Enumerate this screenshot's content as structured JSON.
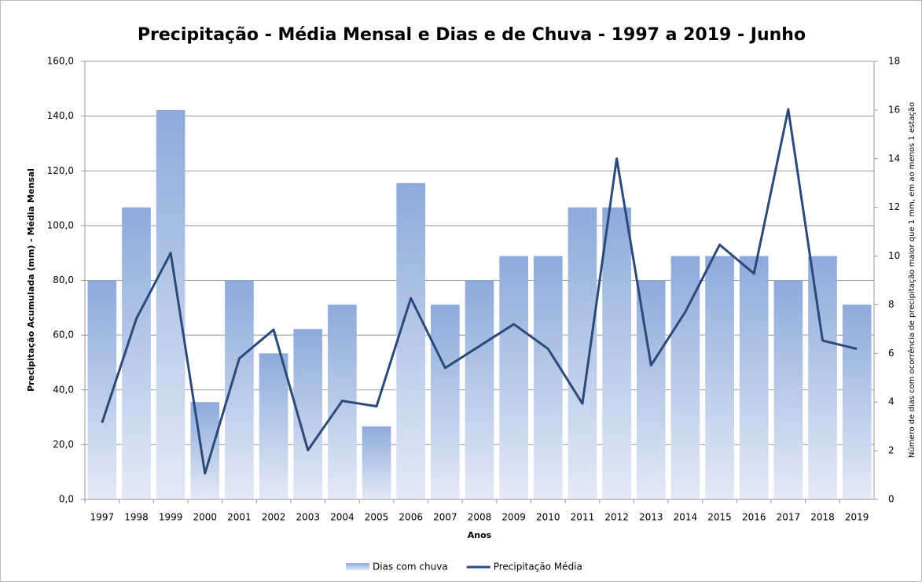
{
  "chart_data": {
    "type": "bar_line",
    "title": "Precipitação - Média Mensal e Dias e de Chuva - 1997 a 2019 - Junho",
    "x_label": "Anos",
    "y_label": "Precipitação Acumulada (mm) - Média Mensal",
    "y2_label": "Número de dias com ocorrência de precipitação maior que 1 mm, em ao menos 1 estação",
    "categories": [
      "1997",
      "1998",
      "1999",
      "2000",
      "2001",
      "2002",
      "2003",
      "2004",
      "2005",
      "2006",
      "2007",
      "2008",
      "2009",
      "2010",
      "2011",
      "2012",
      "2013",
      "2014",
      "2015",
      "2016",
      "2017",
      "2018",
      "2019"
    ],
    "series": [
      {
        "name": "Dias com chuva",
        "type": "bar",
        "axis": "y2",
        "color": "#8eaadb",
        "values": [
          9,
          12,
          16,
          4,
          9,
          6,
          7,
          8,
          3,
          13,
          8,
          9,
          10,
          10,
          12,
          12,
          9,
          10,
          10,
          10,
          9,
          10,
          8
        ]
      },
      {
        "name": "Precipitação Média",
        "type": "line",
        "color": "#2b4a7a",
        "values": [
          28,
          66,
          90,
          9.5,
          51.5,
          62,
          18,
          36,
          34,
          73.5,
          48,
          56,
          64,
          55,
          35,
          124.5,
          49,
          68.5,
          93,
          82.5,
          142.5,
          58,
          55
        ]
      }
    ],
    "ylim": [
      0,
      160
    ],
    "yticks": [
      {
        "value": 0,
        "label": "0,0"
      },
      {
        "value": 20,
        "label": "20,0"
      },
      {
        "value": 40,
        "label": "40,0"
      },
      {
        "value": 60,
        "label": "60,0"
      },
      {
        "value": 80,
        "label": "80,0"
      },
      {
        "value": 100,
        "label": "100,0"
      },
      {
        "value": 120,
        "label": "120,0"
      },
      {
        "value": 140,
        "label": "140,0"
      },
      {
        "value": 160,
        "label": "160,0"
      }
    ],
    "y2lim": [
      0,
      18
    ],
    "y2ticks": [
      0,
      2,
      4,
      6,
      8,
      10,
      12,
      14,
      16,
      18
    ],
    "grid": true,
    "legend": "bottom"
  }
}
